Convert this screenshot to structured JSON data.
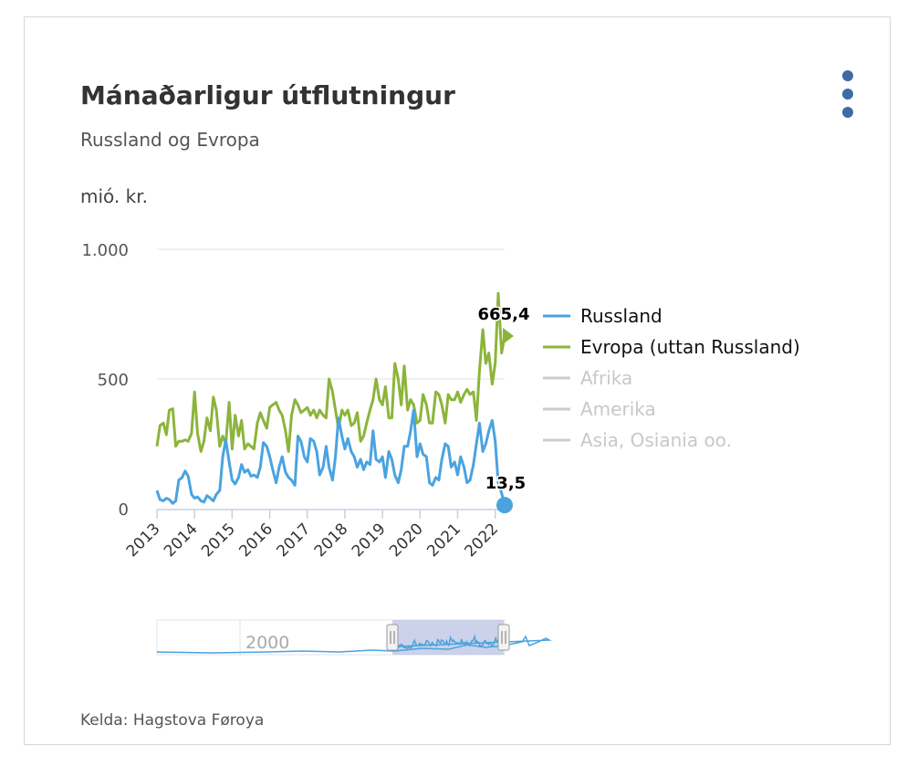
{
  "menu": {
    "icon": "kebab-menu-icon"
  },
  "chart_data": {
    "type": "line",
    "title": "Mánaðarligur útflutningur",
    "subtitle": "Russland og Evropa",
    "ylabel": "mió. kr.",
    "xlabel": "",
    "source": "Kelda: Hagstova Føroya",
    "ylim": [
      0,
      1000
    ],
    "yticks": [
      {
        "value": 0,
        "label": "0"
      },
      {
        "value": 500,
        "label": "500"
      },
      {
        "value": 1000,
        "label": "1.000"
      }
    ],
    "xticks": [
      "2013",
      "2014",
      "2015",
      "2016",
      "2017",
      "2018",
      "2019",
      "2020",
      "2021",
      "2022"
    ],
    "x_range": [
      2013.0,
      2022.25
    ],
    "grid": true,
    "legend_position": "right",
    "series": [
      {
        "name": "Russland",
        "color": "#4aa3df",
        "visible": true,
        "end_label": "13,5",
        "points": [
          [
            2013.0,
            70
          ],
          [
            2013.08,
            35
          ],
          [
            2013.17,
            30
          ],
          [
            2013.25,
            40
          ],
          [
            2013.33,
            35
          ],
          [
            2013.42,
            20
          ],
          [
            2013.5,
            30
          ],
          [
            2013.58,
            110
          ],
          [
            2013.67,
            120
          ],
          [
            2013.75,
            145
          ],
          [
            2013.83,
            125
          ],
          [
            2013.92,
            55
          ],
          [
            2014.0,
            40
          ],
          [
            2014.08,
            45
          ],
          [
            2014.17,
            30
          ],
          [
            2014.25,
            25
          ],
          [
            2014.33,
            50
          ],
          [
            2014.42,
            40
          ],
          [
            2014.5,
            30
          ],
          [
            2014.58,
            55
          ],
          [
            2014.67,
            70
          ],
          [
            2014.75,
            200
          ],
          [
            2014.83,
            265
          ],
          [
            2014.92,
            180
          ],
          [
            2015.0,
            110
          ],
          [
            2015.08,
            95
          ],
          [
            2015.17,
            120
          ],
          [
            2015.25,
            170
          ],
          [
            2015.33,
            140
          ],
          [
            2015.42,
            150
          ],
          [
            2015.5,
            125
          ],
          [
            2015.58,
            130
          ],
          [
            2015.67,
            120
          ],
          [
            2015.75,
            160
          ],
          [
            2015.83,
            255
          ],
          [
            2015.92,
            240
          ],
          [
            2016.0,
            200
          ],
          [
            2016.08,
            150
          ],
          [
            2016.17,
            100
          ],
          [
            2016.25,
            160
          ],
          [
            2016.33,
            200
          ],
          [
            2016.42,
            140
          ],
          [
            2016.5,
            120
          ],
          [
            2016.58,
            110
          ],
          [
            2016.67,
            90
          ],
          [
            2016.75,
            280
          ],
          [
            2016.83,
            260
          ],
          [
            2016.92,
            200
          ],
          [
            2017.0,
            180
          ],
          [
            2017.08,
            270
          ],
          [
            2017.17,
            260
          ],
          [
            2017.25,
            220
          ],
          [
            2017.33,
            130
          ],
          [
            2017.42,
            160
          ],
          [
            2017.5,
            240
          ],
          [
            2017.58,
            160
          ],
          [
            2017.67,
            110
          ],
          [
            2017.75,
            200
          ],
          [
            2017.83,
            350
          ],
          [
            2017.92,
            280
          ],
          [
            2018.0,
            230
          ],
          [
            2018.08,
            270
          ],
          [
            2018.17,
            220
          ],
          [
            2018.25,
            200
          ],
          [
            2018.33,
            160
          ],
          [
            2018.42,
            190
          ],
          [
            2018.5,
            150
          ],
          [
            2018.58,
            180
          ],
          [
            2018.67,
            170
          ],
          [
            2018.75,
            300
          ],
          [
            2018.83,
            190
          ],
          [
            2018.92,
            180
          ],
          [
            2019.0,
            200
          ],
          [
            2019.08,
            120
          ],
          [
            2019.17,
            220
          ],
          [
            2019.25,
            190
          ],
          [
            2019.33,
            130
          ],
          [
            2019.42,
            100
          ],
          [
            2019.5,
            150
          ],
          [
            2019.58,
            240
          ],
          [
            2019.67,
            240
          ],
          [
            2019.75,
            300
          ],
          [
            2019.83,
            380
          ],
          [
            2019.92,
            200
          ],
          [
            2020.0,
            250
          ],
          [
            2020.08,
            210
          ],
          [
            2020.17,
            200
          ],
          [
            2020.25,
            100
          ],
          [
            2020.33,
            90
          ],
          [
            2020.42,
            120
          ],
          [
            2020.5,
            110
          ],
          [
            2020.58,
            190
          ],
          [
            2020.67,
            250
          ],
          [
            2020.75,
            240
          ],
          [
            2020.83,
            160
          ],
          [
            2020.92,
            180
          ],
          [
            2021.0,
            130
          ],
          [
            2021.08,
            200
          ],
          [
            2021.17,
            160
          ],
          [
            2021.25,
            100
          ],
          [
            2021.33,
            110
          ],
          [
            2021.42,
            170
          ],
          [
            2021.5,
            250
          ],
          [
            2021.58,
            330
          ],
          [
            2021.67,
            220
          ],
          [
            2021.75,
            250
          ],
          [
            2021.83,
            300
          ],
          [
            2021.92,
            340
          ],
          [
            2022.0,
            260
          ],
          [
            2022.08,
            100
          ],
          [
            2022.17,
            60
          ],
          [
            2022.25,
            13.5
          ]
        ]
      },
      {
        "name": "Evropa (uttan Russland)",
        "color": "#8cb43c",
        "visible": true,
        "end_label": "665,4",
        "points": [
          [
            2013.0,
            240
          ],
          [
            2013.08,
            320
          ],
          [
            2013.17,
            330
          ],
          [
            2013.25,
            285
          ],
          [
            2013.33,
            380
          ],
          [
            2013.42,
            385
          ],
          [
            2013.5,
            240
          ],
          [
            2013.58,
            260
          ],
          [
            2013.67,
            260
          ],
          [
            2013.75,
            265
          ],
          [
            2013.83,
            260
          ],
          [
            2013.92,
            290
          ],
          [
            2014.0,
            450
          ],
          [
            2014.08,
            290
          ],
          [
            2014.17,
            220
          ],
          [
            2014.25,
            260
          ],
          [
            2014.33,
            350
          ],
          [
            2014.42,
            300
          ],
          [
            2014.5,
            430
          ],
          [
            2014.58,
            380
          ],
          [
            2014.67,
            240
          ],
          [
            2014.75,
            280
          ],
          [
            2014.83,
            250
          ],
          [
            2014.92,
            410
          ],
          [
            2015.0,
            230
          ],
          [
            2015.08,
            360
          ],
          [
            2015.17,
            280
          ],
          [
            2015.25,
            340
          ],
          [
            2015.33,
            230
          ],
          [
            2015.42,
            250
          ],
          [
            2015.5,
            240
          ],
          [
            2015.58,
            230
          ],
          [
            2015.67,
            330
          ],
          [
            2015.75,
            370
          ],
          [
            2015.83,
            340
          ],
          [
            2015.92,
            310
          ],
          [
            2016.0,
            390
          ],
          [
            2016.08,
            400
          ],
          [
            2016.17,
            410
          ],
          [
            2016.25,
            380
          ],
          [
            2016.33,
            360
          ],
          [
            2016.42,
            300
          ],
          [
            2016.5,
            220
          ],
          [
            2016.58,
            360
          ],
          [
            2016.67,
            420
          ],
          [
            2016.75,
            400
          ],
          [
            2016.83,
            370
          ],
          [
            2016.92,
            380
          ],
          [
            2017.0,
            390
          ],
          [
            2017.08,
            360
          ],
          [
            2017.17,
            380
          ],
          [
            2017.25,
            350
          ],
          [
            2017.33,
            380
          ],
          [
            2017.42,
            360
          ],
          [
            2017.5,
            350
          ],
          [
            2017.58,
            500
          ],
          [
            2017.67,
            450
          ],
          [
            2017.75,
            380
          ],
          [
            2017.83,
            310
          ],
          [
            2017.92,
            380
          ],
          [
            2018.0,
            360
          ],
          [
            2018.08,
            380
          ],
          [
            2018.17,
            320
          ],
          [
            2018.25,
            330
          ],
          [
            2018.33,
            370
          ],
          [
            2018.42,
            260
          ],
          [
            2018.5,
            280
          ],
          [
            2018.58,
            330
          ],
          [
            2018.67,
            380
          ],
          [
            2018.75,
            420
          ],
          [
            2018.83,
            500
          ],
          [
            2018.92,
            420
          ],
          [
            2019.0,
            400
          ],
          [
            2019.08,
            470
          ],
          [
            2019.17,
            350
          ],
          [
            2019.25,
            350
          ],
          [
            2019.33,
            560
          ],
          [
            2019.42,
            500
          ],
          [
            2019.5,
            400
          ],
          [
            2019.58,
            550
          ],
          [
            2019.67,
            380
          ],
          [
            2019.75,
            420
          ],
          [
            2019.83,
            400
          ],
          [
            2019.92,
            330
          ],
          [
            2020.0,
            340
          ],
          [
            2020.08,
            440
          ],
          [
            2020.17,
            400
          ],
          [
            2020.25,
            330
          ],
          [
            2020.33,
            330
          ],
          [
            2020.42,
            450
          ],
          [
            2020.5,
            440
          ],
          [
            2020.58,
            400
          ],
          [
            2020.67,
            330
          ],
          [
            2020.75,
            440
          ],
          [
            2020.83,
            420
          ],
          [
            2020.92,
            420
          ],
          [
            2021.0,
            450
          ],
          [
            2021.08,
            410
          ],
          [
            2021.17,
            440
          ],
          [
            2021.25,
            460
          ],
          [
            2021.33,
            440
          ],
          [
            2021.42,
            450
          ],
          [
            2021.5,
            340
          ],
          [
            2021.58,
            530
          ],
          [
            2021.67,
            690
          ],
          [
            2021.75,
            560
          ],
          [
            2021.83,
            600
          ],
          [
            2021.92,
            480
          ],
          [
            2022.0,
            560
          ],
          [
            2022.08,
            830
          ],
          [
            2022.17,
            600
          ],
          [
            2022.25,
            665.4
          ]
        ]
      },
      {
        "name": "Afrika",
        "color": "#cccccc",
        "visible": false
      },
      {
        "name": "Amerika",
        "color": "#cccccc",
        "visible": false
      },
      {
        "name": "Asia, Osiania oo.",
        "color": "#cccccc",
        "visible": false
      }
    ],
    "navigator": {
      "label": "2000",
      "selected_range": [
        2013.0,
        2022.25
      ]
    }
  }
}
